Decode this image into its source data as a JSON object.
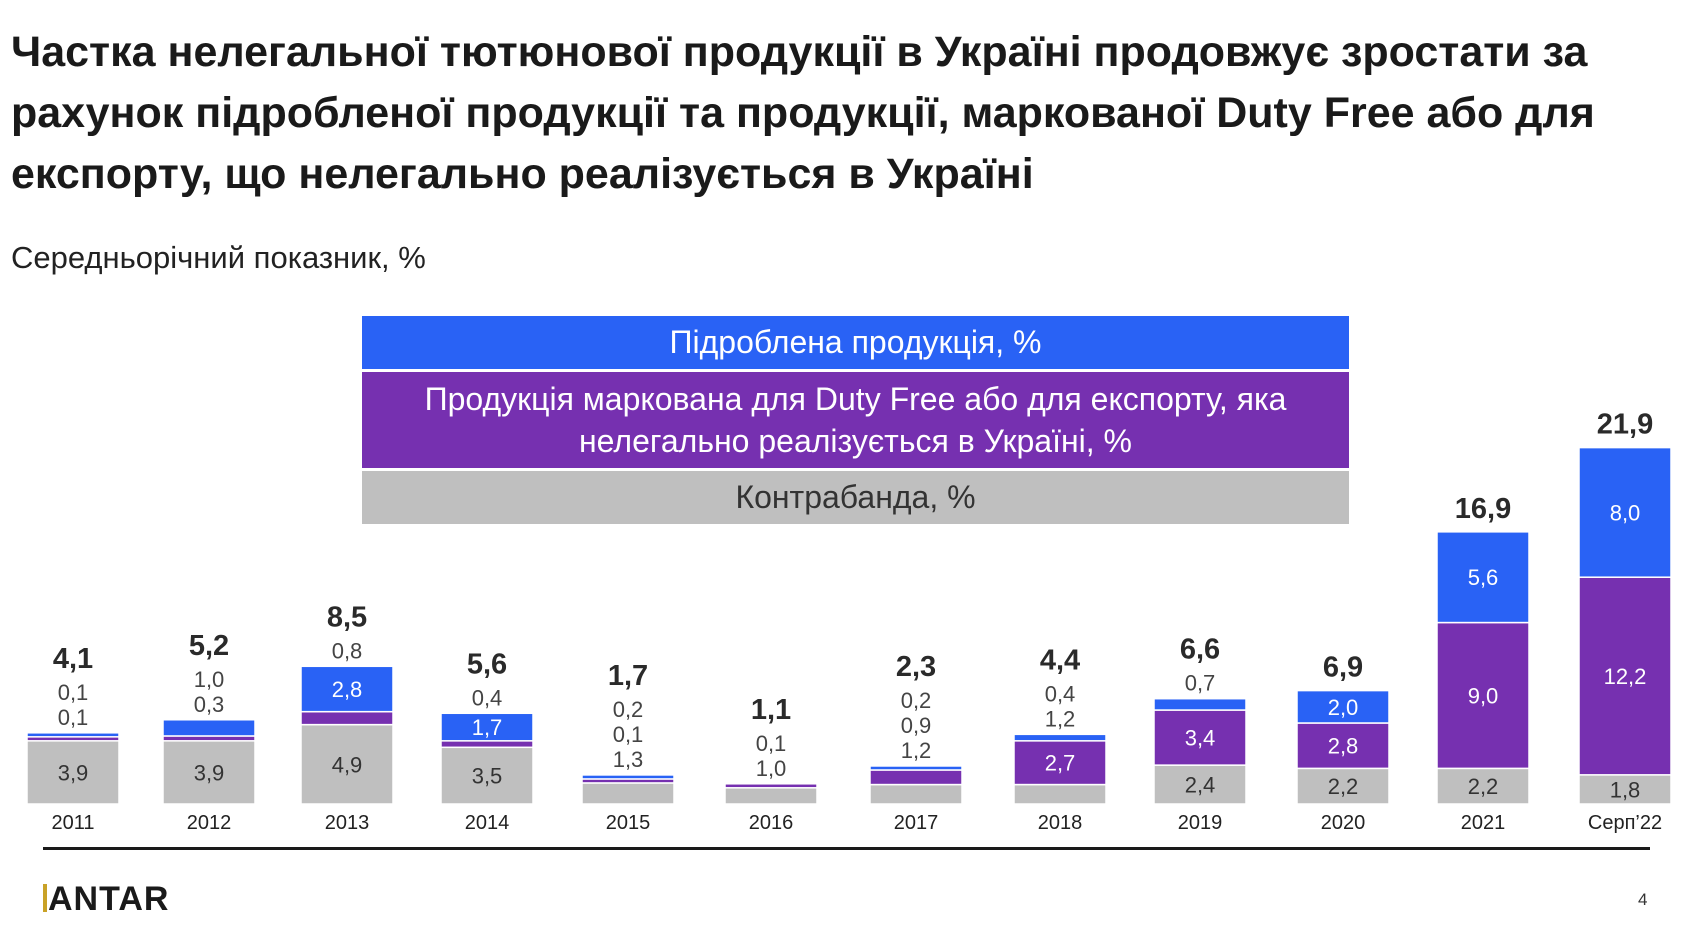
{
  "title": "Частка нелегальної тютюнової продукції в Україні продовжує зростати за рахунок підробленої продукції та продукції, маркованої Duty Free або для експорту, що нелегально реалізується в Україні",
  "subtitle": "Середньорічний показник, %",
  "legend": {
    "counterfeit": "Підроблена продукція, %",
    "duty_free": "Продукція маркована для Duty Free або для експорту, яка нелегально реалізується в Україні, %",
    "contraband": "Контрабанда, %"
  },
  "colors": {
    "counterfeit": "#2962f5",
    "duty_free": "#7630b0",
    "contraband": "#bfbfbf"
  },
  "chart_data": {
    "type": "bar",
    "stacked": true,
    "categories": [
      "2011",
      "2012",
      "2013",
      "2014",
      "2015",
      "2016",
      "2017",
      "2018",
      "2019",
      "2020",
      "2021",
      "Серп’22"
    ],
    "series": [
      {
        "name": "Контрабанда, %",
        "values": [
          3.9,
          3.9,
          4.9,
          3.5,
          1.3,
          1.0,
          1.2,
          1.2,
          2.4,
          2.2,
          2.2,
          1.8
        ],
        "labels": [
          "3,9",
          "3,9",
          "4,9",
          "3,5",
          "1,3",
          "1,0",
          "1,2",
          "1,2",
          "2,4",
          "2,2",
          "2,2",
          "1,8"
        ]
      },
      {
        "name": "Продукція маркована для Duty Free або для експорту, яка нелегально реалізується в Україні, %",
        "values": [
          0.1,
          0.3,
          0.8,
          0.4,
          0.1,
          0.1,
          0.9,
          2.7,
          3.4,
          2.8,
          9.0,
          12.2
        ],
        "labels": [
          "0,1",
          "0,3",
          "0,8",
          "0,4",
          "0,1",
          "0,1",
          "0,9",
          "2,7",
          "3,4",
          "2,8",
          "9,0",
          "12,2"
        ]
      },
      {
        "name": "Підроблена продукція, %",
        "values": [
          0.1,
          1.0,
          2.8,
          1.7,
          0.2,
          0.0,
          0.2,
          0.4,
          0.7,
          2.0,
          5.6,
          8.0
        ],
        "labels": [
          "0,1",
          "1,0",
          "2,8",
          "1,7",
          "0,2",
          "",
          "0,2",
          "0,4",
          "0,7",
          "2,0",
          "5,6",
          "8,0"
        ]
      }
    ],
    "totals": [
      "4,1",
      "5,2",
      "8,5",
      "5,6",
      "1,7",
      "1,1",
      "2,3",
      "4,4",
      "6,6",
      "6,9",
      "16,9",
      "21,9"
    ],
    "xlabel": "",
    "ylabel": "",
    "ylim": [
      0,
      22
    ],
    "grid": false
  },
  "footer": {
    "logo": "KANTAR",
    "page": "4"
  }
}
